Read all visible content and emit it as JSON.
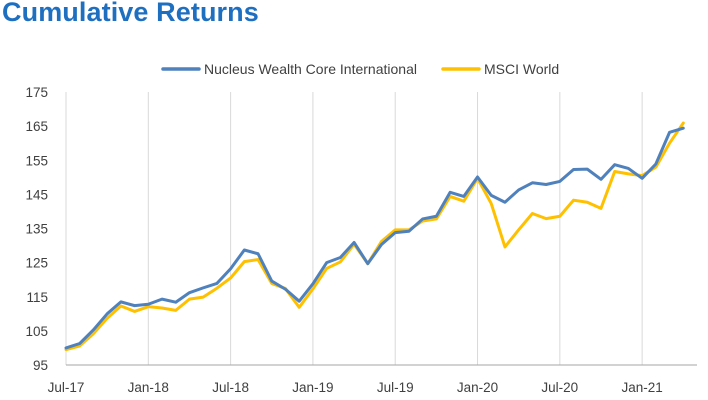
{
  "page_title": "Cumulative Returns",
  "colors": {
    "title": "#1f6fc1",
    "grid": "#d9d9d9",
    "axis": "#a6a6a6",
    "text": "#404040"
  },
  "chart_data": {
    "type": "line",
    "title": "",
    "xlabel": "",
    "ylabel": "",
    "ylim": [
      95,
      175
    ],
    "yticks": [
      95,
      105,
      115,
      125,
      135,
      145,
      155,
      165,
      175
    ],
    "x_tick_labels": [
      "Jul-17",
      "Jan-18",
      "Jul-18",
      "Jan-19",
      "Jul-19",
      "Jan-20",
      "Jul-20",
      "Jan-21"
    ],
    "x_tick_month_index": [
      0,
      6,
      12,
      18,
      24,
      30,
      36,
      42
    ],
    "x_range_months": [
      0,
      46
    ],
    "grid": "vertical",
    "legend_position": "top-center",
    "series": [
      {
        "name": "Nucleus Wealth Core International",
        "color": "#4f81bd",
        "values": [
          100.0,
          101.3,
          105.3,
          110.0,
          113.5,
          112.4,
          112.8,
          114.3,
          113.4,
          116.2,
          117.6,
          118.9,
          123.2,
          128.7,
          127.6,
          119.6,
          117.2,
          113.7,
          118.8,
          125.0,
          126.5,
          130.9,
          124.7,
          130.3,
          133.8,
          134.2,
          137.8,
          138.6,
          145.6,
          144.4,
          150.1,
          144.7,
          142.7,
          146.3,
          148.4,
          147.9,
          148.8,
          152.3,
          152.4,
          149.4,
          153.7,
          152.6,
          149.7,
          153.9,
          163.2,
          164.4
        ]
      },
      {
        "name": "MSCI World",
        "color": "#ffc000",
        "values": [
          99.5,
          100.6,
          104.2,
          108.7,
          112.3,
          110.7,
          112.1,
          111.7,
          111.0,
          114.3,
          114.9,
          117.5,
          120.5,
          125.3,
          125.9,
          118.9,
          117.4,
          111.9,
          117.3,
          123.3,
          125.2,
          130.4,
          124.7,
          131.2,
          134.6,
          134.6,
          137.2,
          137.8,
          144.4,
          143.0,
          149.7,
          142.3,
          129.6,
          134.6,
          139.4,
          137.9,
          138.6,
          143.3,
          142.7,
          140.9,
          151.7,
          151.0,
          150.5,
          153.0,
          160.0,
          165.9
        ]
      }
    ]
  }
}
